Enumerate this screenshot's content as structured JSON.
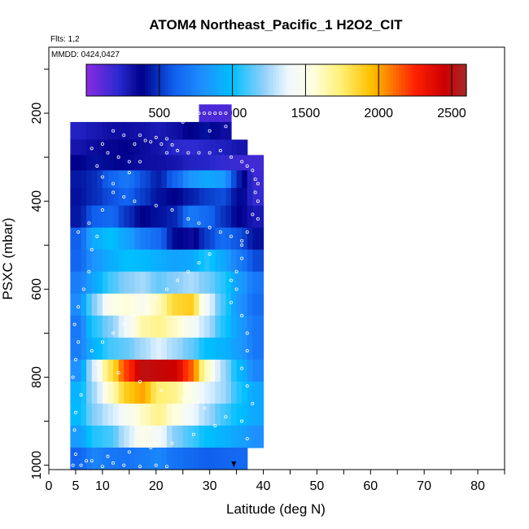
{
  "chart_data": {
    "type": "heatmap",
    "title": "ATOM4 Northeast_Pacific_1 H2O2_CIT",
    "annotations": {
      "flights": "Flts: 1,2",
      "dates": "MMDD: 0424,0427"
    },
    "xlabel": "Latitude (deg N)",
    "ylabel": "PSXC (mbar)",
    "xlim": [
      0,
      85
    ],
    "ylim": [
      1010,
      50
    ],
    "y_reversed": true,
    "x_ticks": [
      0,
      5,
      10,
      20,
      30,
      40,
      50,
      60,
      70,
      80
    ],
    "x_tick_labels": [
      "0",
      "5",
      "10",
      "20",
      "30",
      "40",
      "50",
      "60",
      "70",
      "80"
    ],
    "y_ticks": [
      200,
      400,
      600,
      800,
      1000
    ],
    "y_tick_labels": [
      "200",
      "400",
      "600",
      "800",
      "1000"
    ],
    "colorbar": {
      "range": [
        0,
        2600
      ],
      "ticks": [
        500,
        1000,
        1500,
        2000,
        2500
      ],
      "tick_labels": [
        "500",
        "1000",
        "1500",
        "2000",
        "2500"
      ],
      "stops": [
        [
          0,
          "#8a2be2"
        ],
        [
          220,
          "#2a2ad0"
        ],
        [
          380,
          "#00008b"
        ],
        [
          600,
          "#1060ee"
        ],
        [
          800,
          "#1e90ff"
        ],
        [
          1000,
          "#00bfff"
        ],
        [
          1200,
          "#87cefa"
        ],
        [
          1380,
          "#f0f8ff"
        ],
        [
          1550,
          "#ffffe0"
        ],
        [
          1750,
          "#ffef70"
        ],
        [
          1950,
          "#ffc000"
        ],
        [
          2050,
          "#ff8c00"
        ],
        [
          2250,
          "#ff2000"
        ],
        [
          2450,
          "#cc0000"
        ],
        [
          2600,
          "#a52a2a"
        ]
      ]
    },
    "lat_bin_edges": [
      4,
      7,
      10,
      13,
      16,
      19,
      22,
      25,
      28,
      31,
      34,
      37,
      40
    ],
    "rows": [
      {
        "p_top": 180,
        "p_bot": 220,
        "values": [
          null,
          null,
          null,
          null,
          null,
          null,
          null,
          null,
          150,
          150,
          null,
          null
        ]
      },
      {
        "p_top": 220,
        "p_bot": 260,
        "values": [
          250,
          290,
          320,
          330,
          310,
          280,
          320,
          380,
          420,
          330,
          null,
          null
        ]
      },
      {
        "p_top": 260,
        "p_bot": 295,
        "values": [
          300,
          340,
          360,
          380,
          340,
          300,
          230,
          210,
          240,
          260,
          300,
          null
        ]
      },
      {
        "p_top": 295,
        "p_bot": 330,
        "values": [
          380,
          420,
          400,
          360,
          330,
          320,
          300,
          250,
          240,
          200,
          180,
          170
        ]
      },
      {
        "p_top": 330,
        "p_bot": 370,
        "values": [
          430,
          480,
          620,
          700,
          560,
          450,
          620,
          820,
          900,
          850,
          450,
          180
        ]
      },
      {
        "p_top": 370,
        "p_bot": 410,
        "values": [
          420,
          480,
          560,
          620,
          520,
          420,
          380,
          450,
          520,
          560,
          400,
          200
        ]
      },
      {
        "p_top": 410,
        "p_bot": 460,
        "values": [
          430,
          600,
          640,
          500,
          380,
          420,
          470,
          700,
          640,
          500,
          380,
          280
        ]
      },
      {
        "p_top": 460,
        "p_bot": 510,
        "values": [
          600,
          920,
          1000,
          880,
          720,
          640,
          400,
          340,
          520,
          650,
          570,
          420
        ]
      },
      {
        "p_top": 510,
        "p_bot": 560,
        "values": [
          620,
          820,
          920,
          1000,
          980,
          930,
          880,
          900,
          1050,
          900,
          720,
          550
        ]
      },
      {
        "p_top": 560,
        "p_bot": 610,
        "values": [
          720,
          900,
          1100,
          1200,
          1250,
          1150,
          1200,
          1260,
          1180,
          1060,
          860,
          700
        ]
      },
      {
        "p_top": 610,
        "p_bot": 660,
        "values": [
          780,
          1200,
          1500,
          1560,
          1480,
          1620,
          1850,
          1900,
          1400,
          1100,
          820,
          660
        ]
      },
      {
        "p_top": 660,
        "p_bot": 710,
        "values": [
          700,
          1050,
          1200,
          1400,
          1650,
          1700,
          1600,
          1450,
          1280,
          1050,
          860,
          700
        ]
      },
      {
        "p_top": 710,
        "p_bot": 760,
        "values": [
          720,
          950,
          1100,
          1150,
          1250,
          1350,
          1250,
          1150,
          1000,
          950,
          850,
          700
        ]
      },
      {
        "p_top": 760,
        "p_bot": 810,
        "values": [
          800,
          1350,
          1800,
          2200,
          2500,
          2480,
          2450,
          2150,
          1600,
          1250,
          980,
          760
        ]
      },
      {
        "p_top": 810,
        "p_bot": 860,
        "values": [
          950,
          1250,
          1600,
          1900,
          2000,
          1750,
          1700,
          1500,
          1350,
          1250,
          1050,
          900
        ]
      },
      {
        "p_top": 860,
        "p_bot": 910,
        "values": [
          980,
          1200,
          1320,
          1450,
          1600,
          1700,
          1550,
          1400,
          1250,
          1100,
          1000,
          900
        ]
      },
      {
        "p_top": 910,
        "p_bot": 960,
        "values": [
          850,
          1050,
          1100,
          1300,
          1500,
          1420,
          1200,
          1100,
          1000,
          950,
          880,
          800
        ]
      },
      {
        "p_top": 960,
        "p_bot": 1010,
        "values": [
          620,
          750,
          700,
          680,
          720,
          760,
          680,
          640,
          600,
          620,
          640,
          null
        ]
      }
    ],
    "samples": [
      [
        4.5,
        1000
      ],
      [
        5,
        975
      ],
      [
        6,
        1000
      ],
      [
        8,
        990
      ],
      [
        10,
        1003
      ],
      [
        12,
        995
      ],
      [
        14,
        1000
      ],
      [
        17,
        1003
      ],
      [
        20,
        1000
      ],
      [
        22,
        1003
      ],
      [
        4.8,
        920
      ],
      [
        5,
        880
      ],
      [
        6,
        840
      ],
      [
        4.5,
        800
      ],
      [
        5,
        760
      ],
      [
        5.5,
        720
      ],
      [
        4.8,
        680
      ],
      [
        5.5,
        640
      ],
      [
        6.5,
        600
      ],
      [
        7.5,
        560
      ],
      [
        8,
        510
      ],
      [
        9,
        480
      ],
      [
        5.5,
        470
      ],
      [
        7.5,
        450
      ],
      [
        10,
        420
      ],
      [
        12,
        380
      ],
      [
        15,
        335
      ],
      [
        17,
        310
      ],
      [
        22,
        290
      ],
      [
        24,
        285
      ],
      [
        26,
        290
      ],
      [
        28,
        290
      ],
      [
        30,
        290
      ],
      [
        32,
        285
      ],
      [
        34,
        300
      ],
      [
        36,
        310
      ],
      [
        37,
        320
      ],
      [
        38,
        330
      ],
      [
        38.5,
        350
      ],
      [
        39,
        360
      ],
      [
        38.5,
        380
      ],
      [
        39,
        400
      ],
      [
        38,
        430
      ],
      [
        39,
        440
      ],
      [
        37,
        470
      ],
      [
        36,
        490
      ],
      [
        36,
        530
      ],
      [
        35,
        560
      ],
      [
        34,
        580
      ],
      [
        35,
        600
      ],
      [
        34,
        630
      ],
      [
        36,
        660
      ],
      [
        37,
        700
      ],
      [
        37,
        740
      ],
      [
        36,
        780
      ],
      [
        37,
        820
      ],
      [
        38,
        860
      ],
      [
        36,
        900
      ],
      [
        37,
        940
      ],
      [
        38,
        980
      ],
      [
        25,
        220
      ],
      [
        27,
        210
      ],
      [
        28,
        200
      ],
      [
        29,
        200
      ],
      [
        30,
        200
      ],
      [
        31,
        200
      ],
      [
        32,
        200
      ],
      [
        33,
        200
      ],
      [
        30,
        240
      ],
      [
        33,
        230
      ],
      [
        12,
        240
      ],
      [
        14,
        250
      ],
      [
        17,
        250
      ],
      [
        20,
        255
      ],
      [
        22,
        258
      ],
      [
        21,
        270
      ],
      [
        23,
        272
      ],
      [
        19,
        265
      ],
      [
        16,
        270
      ],
      [
        18,
        262
      ],
      [
        10,
        270
      ],
      [
        8,
        280
      ],
      [
        11,
        290
      ],
      [
        13,
        300
      ],
      [
        15,
        310
      ],
      [
        9,
        320
      ],
      [
        10,
        345
      ],
      [
        12,
        360
      ],
      [
        14,
        390
      ],
      [
        16,
        400
      ],
      [
        20,
        410
      ],
      [
        23,
        420
      ],
      [
        26,
        440
      ],
      [
        28,
        450
      ],
      [
        30,
        460
      ],
      [
        32,
        470
      ],
      [
        34,
        480
      ],
      [
        36,
        500
      ],
      [
        30,
        520
      ],
      [
        28,
        540
      ],
      [
        26,
        560
      ],
      [
        24,
        580
      ],
      [
        22,
        600
      ],
      [
        20,
        620
      ],
      [
        18,
        640
      ],
      [
        16,
        660
      ],
      [
        14,
        680
      ],
      [
        12,
        700
      ],
      [
        10,
        720
      ],
      [
        8,
        740
      ],
      [
        9,
        770
      ],
      [
        13,
        790
      ],
      [
        17,
        810
      ],
      [
        21,
        830
      ],
      [
        25,
        850
      ],
      [
        29,
        870
      ],
      [
        33,
        890
      ],
      [
        31,
        910
      ],
      [
        27,
        930
      ],
      [
        23,
        950
      ],
      [
        19,
        960
      ],
      [
        15,
        970
      ],
      [
        11,
        980
      ],
      [
        7,
        990
      ]
    ],
    "marker": {
      "lat": 34.5,
      "p": 1010
    },
    "grid": false,
    "legend": "colorbar-top"
  }
}
